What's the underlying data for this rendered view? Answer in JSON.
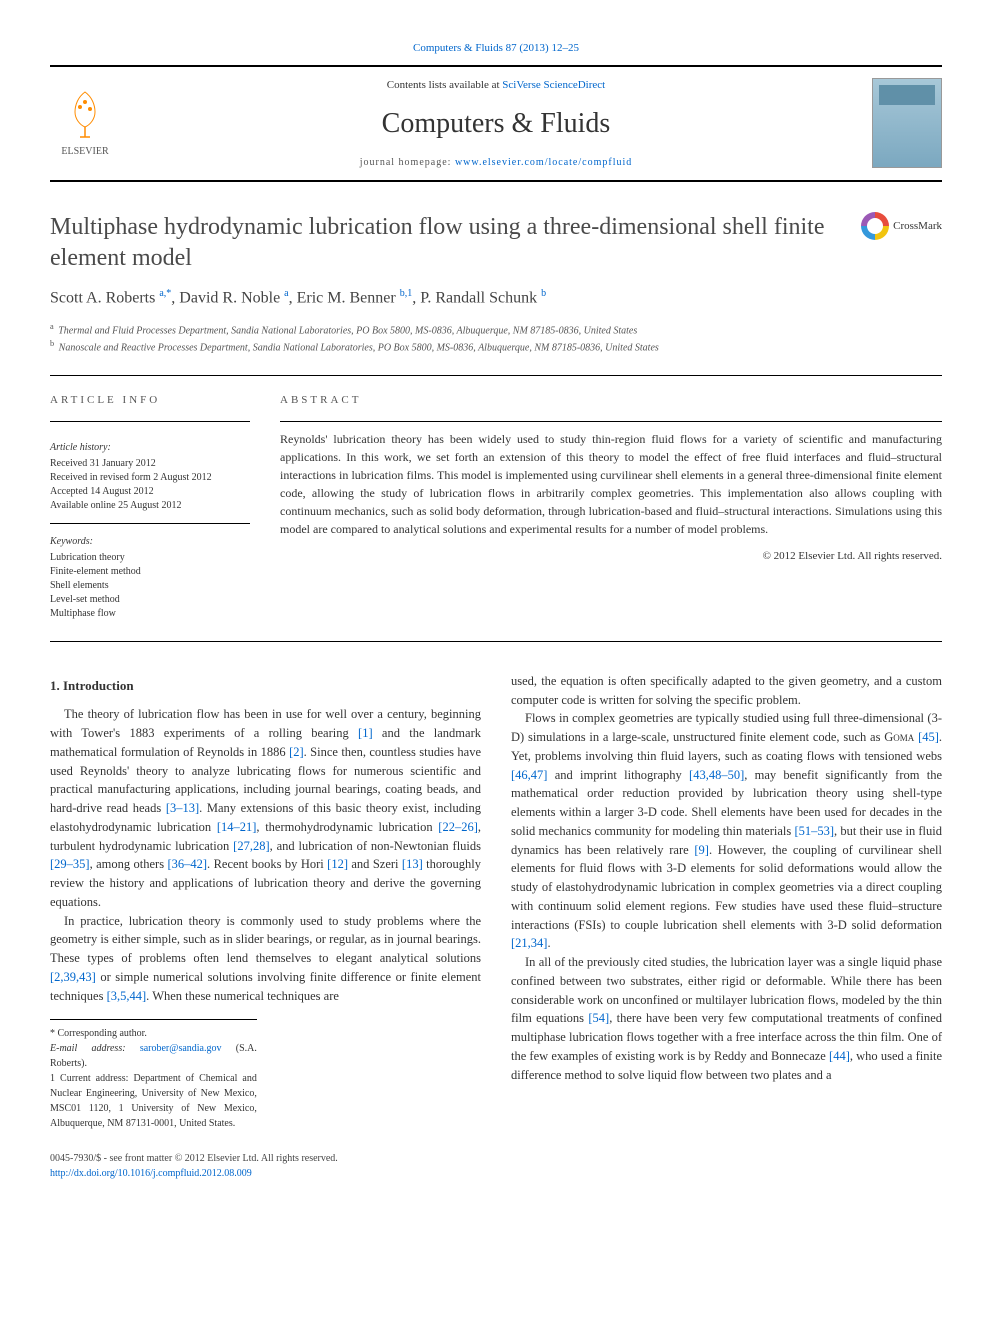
{
  "header": {
    "citation_link": "Computers & Fluids 87 (2013) 12–25",
    "contents_prefix": "Contents lists available at ",
    "contents_link": "SciVerse ScienceDirect",
    "journal_title": "Computers & Fluids",
    "homepage_prefix": "journal homepage: ",
    "homepage_url": "www.elsevier.com/locate/compfluid",
    "publisher": "ELSEVIER"
  },
  "crossmark_label": "CrossMark",
  "article": {
    "title": "Multiphase hydrodynamic lubrication flow using a three-dimensional shell finite element model",
    "authors_html": "Scott A. Roberts <sup>a,*</sup>, David R. Noble <sup>a</sup>, Eric M. Benner <sup>b,1</sup>, P. Randall Schunk <sup>b</sup>",
    "affiliations": [
      "Thermal and Fluid Processes Department, Sandia National Laboratories, PO Box 5800, MS-0836, Albuquerque, NM 87185-0836, United States",
      "Nanoscale and Reactive Processes Department, Sandia National Laboratories, PO Box 5800, MS-0836, Albuquerque, NM 87185-0836, United States"
    ],
    "aff_markers": [
      "a",
      "b"
    ]
  },
  "info": {
    "heading": "ARTICLE INFO",
    "history_label": "Article history:",
    "history": [
      "Received 31 January 2012",
      "Received in revised form 2 August 2012",
      "Accepted 14 August 2012",
      "Available online 25 August 2012"
    ],
    "keywords_label": "Keywords:",
    "keywords": [
      "Lubrication theory",
      "Finite-element method",
      "Shell elements",
      "Level-set method",
      "Multiphase flow"
    ]
  },
  "abstract": {
    "heading": "ABSTRACT",
    "text": "Reynolds' lubrication theory has been widely used to study thin-region fluid flows for a variety of scientific and manufacturing applications. In this work, we set forth an extension of this theory to model the effect of free fluid interfaces and fluid–structural interactions in lubrication films. This model is implemented using curvilinear shell elements in a general three-dimensional finite element code, allowing the study of lubrication flows in arbitrarily complex geometries. This implementation also allows coupling with continuum mechanics, such as solid body deformation, through lubrication-based and fluid–structural interactions. Simulations using this model are compared to analytical solutions and experimental results for a number of model problems.",
    "copyright": "© 2012 Elsevier Ltd. All rights reserved."
  },
  "body": {
    "section1_heading": "1. Introduction",
    "p1": "The theory of lubrication flow has been in use for well over a century, beginning with Tower's 1883 experiments of a rolling bearing [1] and the landmark mathematical formulation of Reynolds in 1886 [2]. Since then, countless studies have used Reynolds' theory to analyze lubricating flows for numerous scientific and practical manufacturing applications, including journal bearings, coating beads, and hard-drive read heads [3–13]. Many extensions of this basic theory exist, including elastohydrodynamic lubrication [14–21], thermohydrodynamic lubrication [22–26], turbulent hydrodynamic lubrication [27,28], and lubrication of non-Newtonian fluids [29–35], among others [36–42]. Recent books by Hori [12] and Szeri [13] thoroughly review the history and applications of lubrication theory and derive the governing equations.",
    "p2": "In practice, lubrication theory is commonly used to study problems where the geometry is either simple, such as in slider bearings, or regular, as in journal bearings. These types of problems often lend themselves to elegant analytical solutions [2,39,43] or simple numerical solutions involving finite difference or finite element techniques [3,5,44]. When these numerical techniques are",
    "p3": "used, the equation is often specifically adapted to the given geometry, and a custom computer code is written for solving the specific problem.",
    "p4": "Flows in complex geometries are typically studied using full three-dimensional (3-D) simulations in a large-scale, unstructured finite element code, such as Goma [45]. Yet, problems involving thin fluid layers, such as coating flows with tensioned webs [46,47] and imprint lithography [43,48–50], may benefit significantly from the mathematical order reduction provided by lubrication theory using shell-type elements within a larger 3-D code. Shell elements have been used for decades in the solid mechanics community for modeling thin materials [51–53], but their use in fluid dynamics has been relatively rare [9]. However, the coupling of curvilinear shell elements for fluid flows with 3-D elements for solid deformations would allow the study of elastohydrodynamic lubrication in complex geometries via a direct coupling with continuum solid element regions. Few studies have used these fluid–structure interactions (FSIs) to couple lubrication shell elements with 3-D solid deformation [21,34].",
    "p5": "In all of the previously cited studies, the lubrication layer was a single liquid phase confined between two substrates, either rigid or deformable. While there has been considerable work on unconfined or multilayer lubrication flows, modeled by the thin film equations [54], there have been very few computational treatments of confined multiphase lubrication flows together with a free interface across the thin film. One of the few examples of existing work is by Reddy and Bonnecaze [44], who used a finite difference method to solve liquid flow between two plates and a"
  },
  "footnotes": {
    "corr": "* Corresponding author.",
    "email_label": "E-mail address: ",
    "email": "sarober@sandia.gov",
    "email_author": " (S.A. Roberts).",
    "note1": "1 Current address: Department of Chemical and Nuclear Engineering, University of New Mexico, MSC01 1120, 1 University of New Mexico, Albuquerque, NM 87131-0001, United States."
  },
  "footer": {
    "issn": "0045-7930/$ - see front matter © 2012 Elsevier Ltd. All rights reserved.",
    "doi": "http://dx.doi.org/10.1016/j.compfluid.2012.08.009"
  },
  "colors": {
    "link": "#0066cc",
    "text": "#333333",
    "heading_gray": "#4a4a4a",
    "border": "#000000"
  }
}
